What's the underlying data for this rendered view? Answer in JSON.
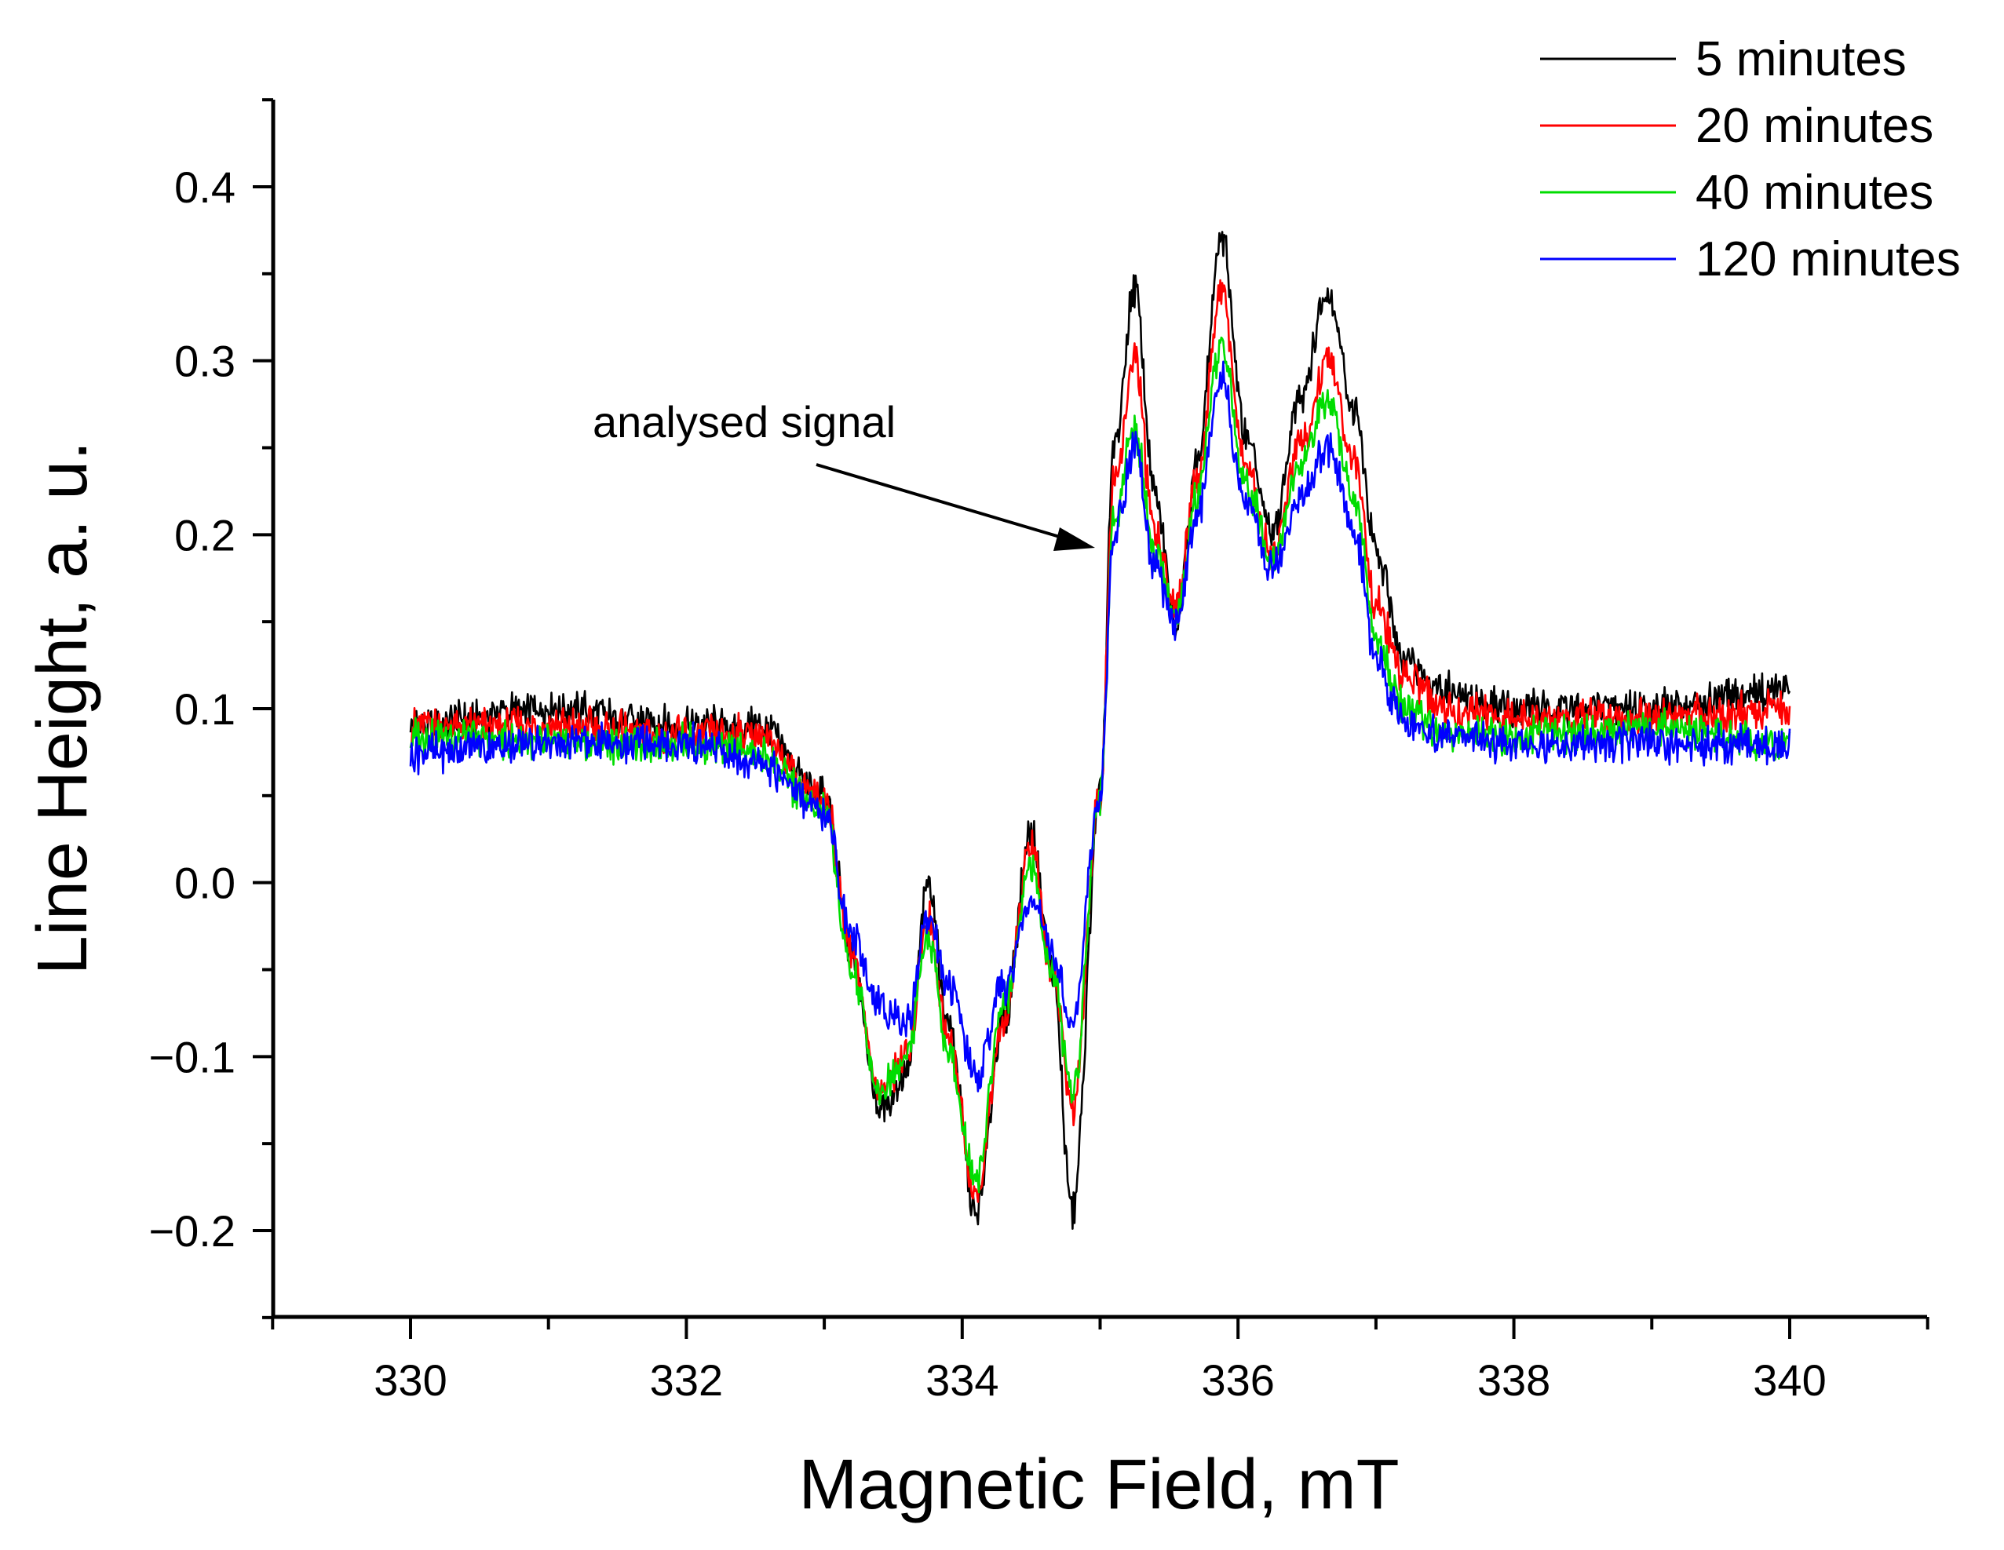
{
  "chart_data": {
    "type": "line",
    "title": "",
    "xlabel": "Magnetic Field, mT",
    "ylabel": "Line Height, a. u.",
    "xlim": [
      329,
      341
    ],
    "ylim": [
      -0.25,
      0.45
    ],
    "xticks": [
      330,
      332,
      334,
      336,
      338,
      340
    ],
    "xtick_labels": [
      "330",
      "332",
      "334",
      "336",
      "338",
      "340"
    ],
    "yticks": [
      -0.2,
      -0.1,
      0.0,
      0.1,
      0.2,
      0.3,
      0.4
    ],
    "ytick_labels": [
      "−0.2",
      "−0.1",
      "0.0",
      "0.1",
      "0.2",
      "0.3",
      "0.4"
    ],
    "grid": false,
    "legend_position": "top-right",
    "annotation": {
      "text": "analysed signal",
      "x": 335.0,
      "y": 0.2
    },
    "x": [
      330.0,
      331.0,
      332.0,
      332.5,
      333.0,
      333.2,
      333.4,
      333.6,
      333.75,
      333.9,
      334.1,
      334.3,
      334.5,
      334.65,
      334.8,
      335.0,
      335.1,
      335.25,
      335.4,
      335.55,
      335.7,
      335.88,
      336.05,
      336.25,
      336.45,
      336.65,
      336.85,
      337.0,
      337.2,
      337.5,
      338.0,
      339.0,
      340.0
    ],
    "series": [
      {
        "name": "5 minutes",
        "color": "#000000",
        "values": [
          0.09,
          0.1,
          0.09,
          0.09,
          0.05,
          -0.04,
          -0.13,
          -0.11,
          0.0,
          -0.08,
          -0.19,
          -0.08,
          0.03,
          -0.05,
          -0.19,
          0.05,
          0.25,
          0.34,
          0.22,
          0.15,
          0.24,
          0.37,
          0.26,
          0.2,
          0.28,
          0.34,
          0.27,
          0.19,
          0.13,
          0.11,
          0.1,
          0.1,
          0.11
        ]
      },
      {
        "name": "20 minutes",
        "color": "#ff0000",
        "values": [
          0.09,
          0.09,
          0.085,
          0.085,
          0.05,
          -0.04,
          -0.12,
          -0.1,
          -0.02,
          -0.09,
          -0.18,
          -0.08,
          0.02,
          -0.05,
          -0.13,
          0.05,
          0.23,
          0.3,
          0.2,
          0.16,
          0.23,
          0.34,
          0.24,
          0.19,
          0.25,
          0.3,
          0.24,
          0.16,
          0.12,
          0.1,
          0.095,
          0.095,
          0.1
        ]
      },
      {
        "name": "40 minutes",
        "color": "#00dd00",
        "values": [
          0.085,
          0.08,
          0.08,
          0.075,
          0.04,
          -0.05,
          -0.12,
          -0.1,
          -0.03,
          -0.1,
          -0.17,
          -0.07,
          0.01,
          -0.05,
          -0.12,
          0.05,
          0.21,
          0.26,
          0.19,
          0.15,
          0.22,
          0.31,
          0.23,
          0.19,
          0.24,
          0.28,
          0.22,
          0.14,
          0.1,
          0.085,
          0.085,
          0.09,
          0.08
        ]
      },
      {
        "name": "120 minutes",
        "color": "#0000ff",
        "values": [
          0.075,
          0.08,
          0.08,
          0.07,
          0.04,
          -0.03,
          -0.07,
          -0.08,
          -0.02,
          -0.06,
          -0.11,
          -0.06,
          -0.01,
          -0.04,
          -0.08,
          0.05,
          0.2,
          0.25,
          0.18,
          0.15,
          0.21,
          0.29,
          0.22,
          0.18,
          0.22,
          0.25,
          0.2,
          0.13,
          0.09,
          0.085,
          0.08,
          0.08,
          0.08
        ]
      }
    ]
  }
}
